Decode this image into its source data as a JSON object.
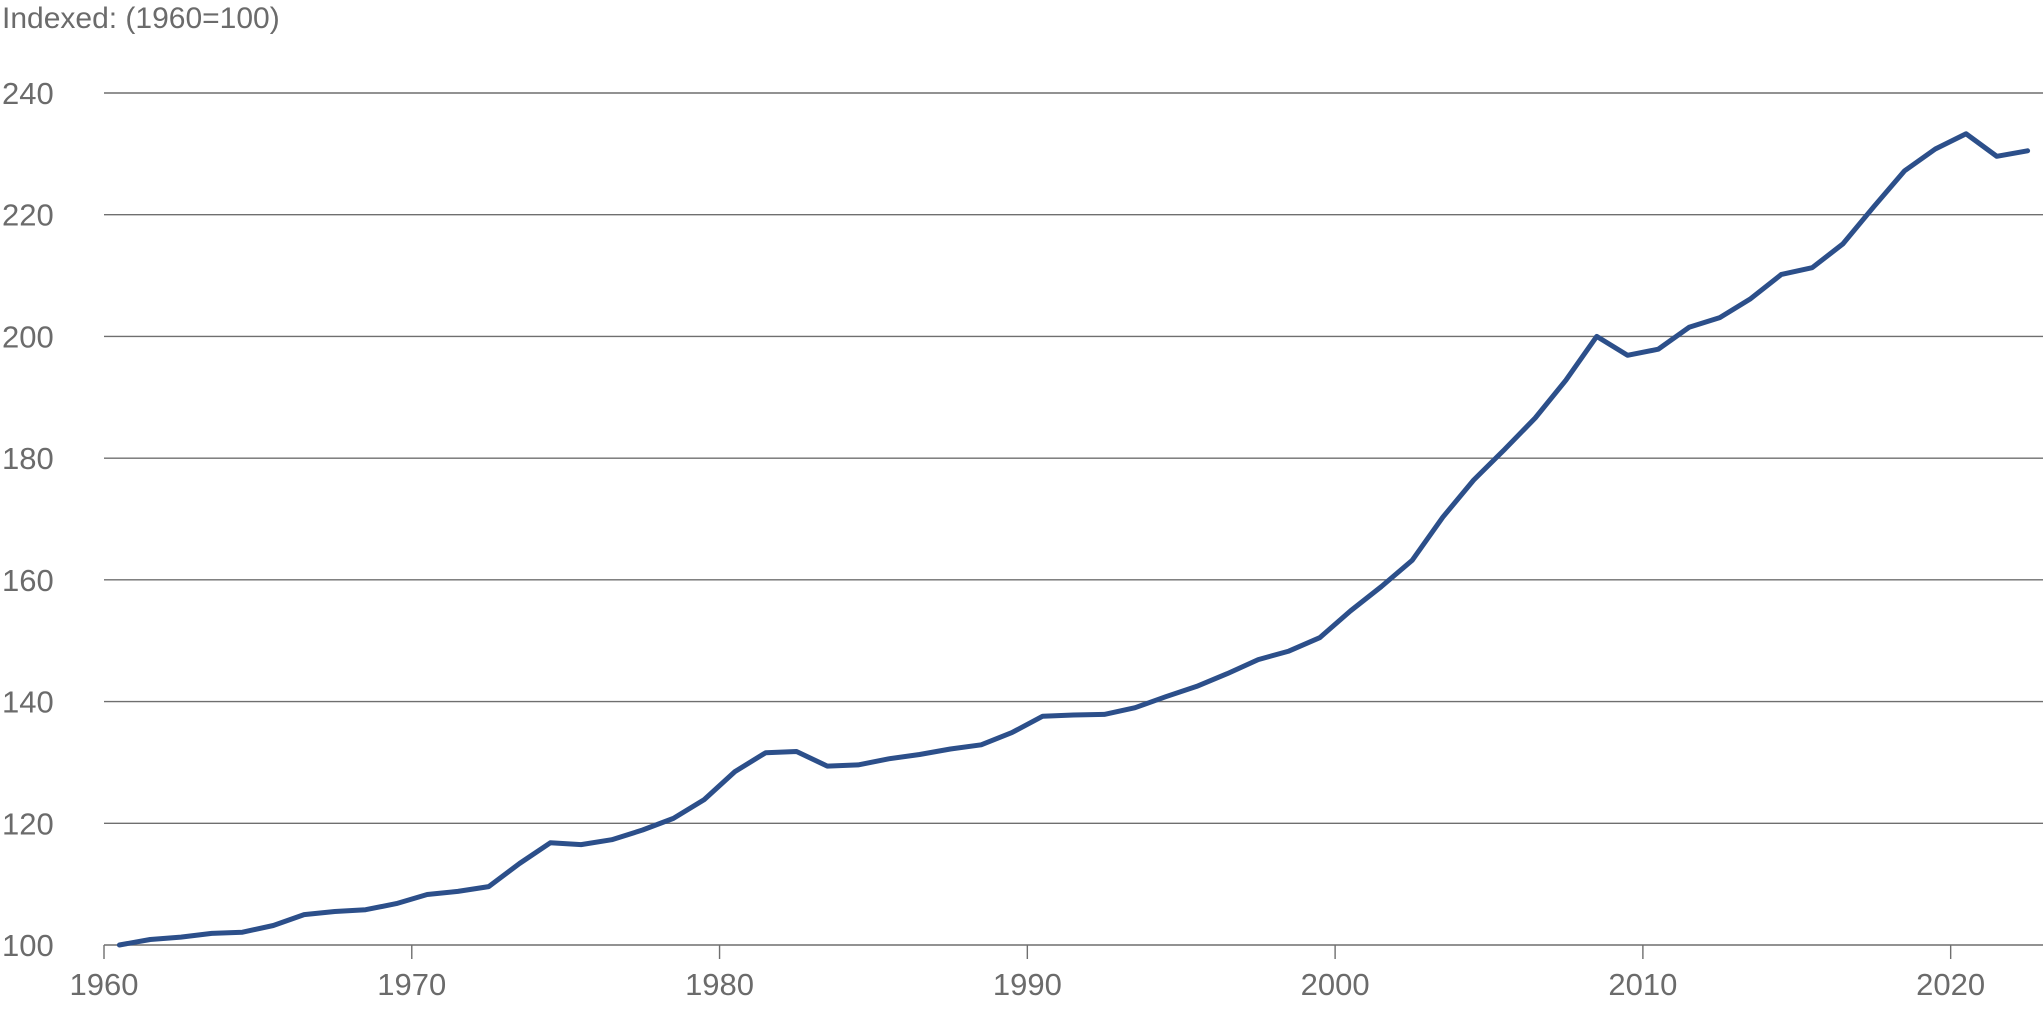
{
  "chart_data": {
    "type": "line",
    "ylabel": "Indexed: (1960=100)",
    "ylim": [
      100,
      240
    ],
    "xlim": [
      1960,
      2023
    ],
    "yticks": [
      "100",
      "120",
      "140",
      "160",
      "180",
      "200",
      "220",
      "240"
    ],
    "xticks": [
      "1960",
      "1970",
      "1980",
      "1990",
      "2000",
      "2010",
      "2020"
    ],
    "grid": "horizontal",
    "colors": {
      "line": "#2c4f8a",
      "grid": "#6f6f6f",
      "text": "#6b6b6b"
    },
    "series": [
      {
        "x": [
          1960.5,
          1961.5,
          1962.5,
          1963.5,
          1964.5,
          1965.5,
          1966.5,
          1967.5,
          1968.5,
          1969.5,
          1970.5,
          1971.5,
          1972.5,
          1973.5,
          1974.5,
          1975.5,
          1976.5,
          1977.5,
          1978.5,
          1979.5,
          1980.5,
          1981.5,
          1982.5,
          1983.5,
          1984.5,
          1985.5,
          1986.5,
          1987.5,
          1988.5,
          1989.5,
          1990.5,
          1991.5,
          1992.5,
          1993.5,
          1994.5,
          1995.5,
          1996.5,
          1997.5,
          1998.5,
          1999.5,
          2000.5,
          2001.5,
          2002.5,
          2003.5,
          2004.5,
          2005.5,
          2006.5,
          2007.5,
          2008.5,
          2009.5,
          2010.5,
          2011.5,
          2012.5,
          2013.5,
          2014.5,
          2015.5,
          2016.5,
          2017.5,
          2018.5,
          2019.5,
          2020.5,
          2021.5,
          2022.5
        ],
        "values": [
          100.0,
          100.9,
          101.3,
          101.9,
          102.1,
          103.2,
          105.0,
          105.5,
          105.8,
          106.8,
          108.3,
          108.8,
          109.6,
          113.4,
          116.8,
          116.5,
          117.3,
          118.9,
          120.8,
          123.9,
          128.5,
          131.6,
          131.8,
          129.4,
          129.6,
          130.6,
          131.3,
          132.2,
          132.9,
          134.9,
          137.6,
          137.8,
          137.9,
          139.0,
          140.8,
          142.5,
          144.6,
          146.9,
          148.3,
          150.5,
          154.9,
          158.9,
          163.2,
          170.3,
          176.4,
          181.4,
          186.6,
          192.8,
          200.0,
          196.9,
          197.9,
          201.5,
          203.1,
          206.2,
          210.2,
          211.3,
          215.2,
          221.3,
          227.2,
          230.8,
          233.3,
          229.6,
          230.5
        ]
      }
    ]
  }
}
